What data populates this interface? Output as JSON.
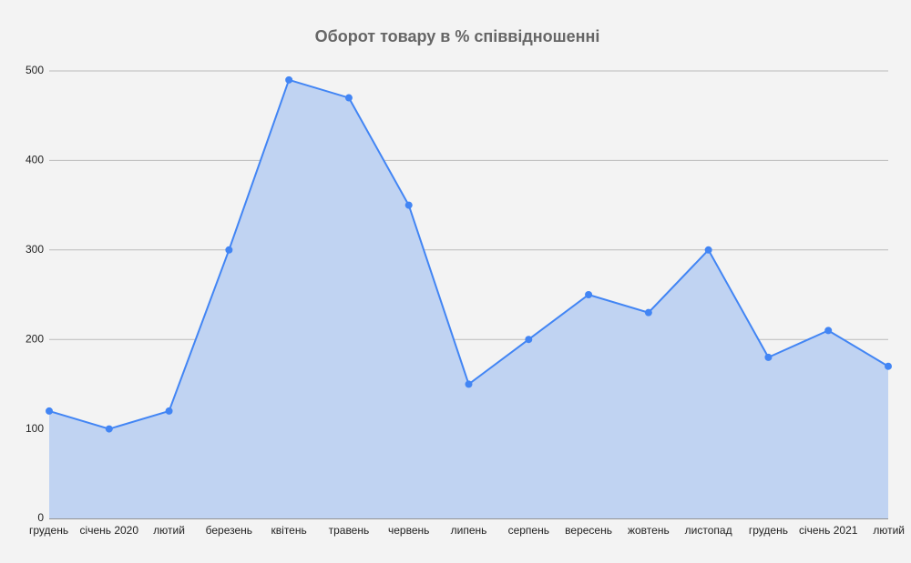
{
  "chart_data": {
    "type": "area",
    "title": "Оборот товару в % співвідношенні",
    "categories": [
      "грудень",
      "січень 2020",
      "лютий",
      "березень",
      "квітень",
      "травень",
      "червень",
      "липень",
      "серпень",
      "вересень",
      "жовтень",
      "листопад",
      "грудень",
      "січень 2021",
      "лютий"
    ],
    "values": [
      120,
      100,
      120,
      300,
      490,
      470,
      350,
      150,
      200,
      250,
      230,
      300,
      180,
      210,
      170
    ],
    "color": "#4285f4",
    "fill": "#c0d3f2",
    "ylim": [
      0,
      500
    ],
    "yticks": [
      0,
      100,
      200,
      300,
      400,
      500
    ],
    "grid": true
  }
}
